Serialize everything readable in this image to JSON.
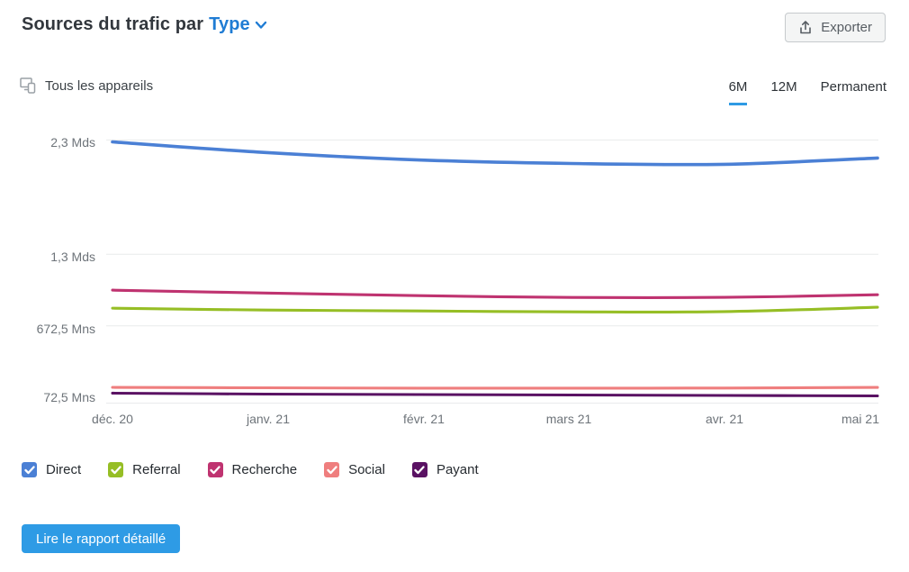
{
  "header": {
    "title_prefix": "Sources du trafic par",
    "title_dropdown": "Type",
    "export_button": "Exporter"
  },
  "filters": {
    "devices_label": "Tous les appareils",
    "period_tabs": [
      {
        "label": "6M",
        "active": true
      },
      {
        "label": "12M",
        "active": false
      },
      {
        "label": "Permanent",
        "active": false
      }
    ]
  },
  "chart_data": {
    "type": "line",
    "title": "Sources du trafic par Type",
    "x_labels": [
      "déc. 20",
      "janv. 21",
      "févr. 21",
      "mars 21",
      "avr. 21",
      "mai 21"
    ],
    "y_tick_labels": [
      "2,3 Mds",
      "1,3 Mds",
      "672,5 Mns",
      "72,5 Mns"
    ],
    "y_tick_values_millions": [
      2300,
      1300,
      672.5,
      72.5
    ],
    "ylim_millions": [
      0,
      2400
    ],
    "grid": "horizontal",
    "legend_position": "bottom",
    "series": [
      {
        "name": "Direct",
        "color": "#4b80d5",
        "checked": true,
        "values_millions": [
          2283,
          2190,
          2125,
          2094,
          2087,
          2142
        ]
      },
      {
        "name": "Referral",
        "color": "#96be25",
        "checked": true,
        "values_millions": [
          827,
          811,
          803,
          795,
          797,
          835
        ]
      },
      {
        "name": "Recherche",
        "color": "#bf3370",
        "checked": true,
        "values_millions": [
          985,
          960,
          937,
          921,
          922,
          945
        ]
      },
      {
        "name": "Social",
        "color": "#ef7e7e",
        "checked": true,
        "values_millions": [
          134,
          130,
          127,
          127,
          128,
          133
        ]
      },
      {
        "name": "Payant",
        "color": "#5a1263",
        "checked": true,
        "values_millions": [
          83,
          75,
          71,
          67,
          63,
          59
        ]
      }
    ]
  },
  "footer": {
    "report_button": "Lire le rapport détaillé"
  },
  "colors": {
    "accent_blue": "#1f7cd4",
    "tab_underline": "#2e9ae4",
    "report_button_bg": "#2e9be5",
    "axis_text": "#6e747a",
    "grid_line": "#e9ebec"
  }
}
